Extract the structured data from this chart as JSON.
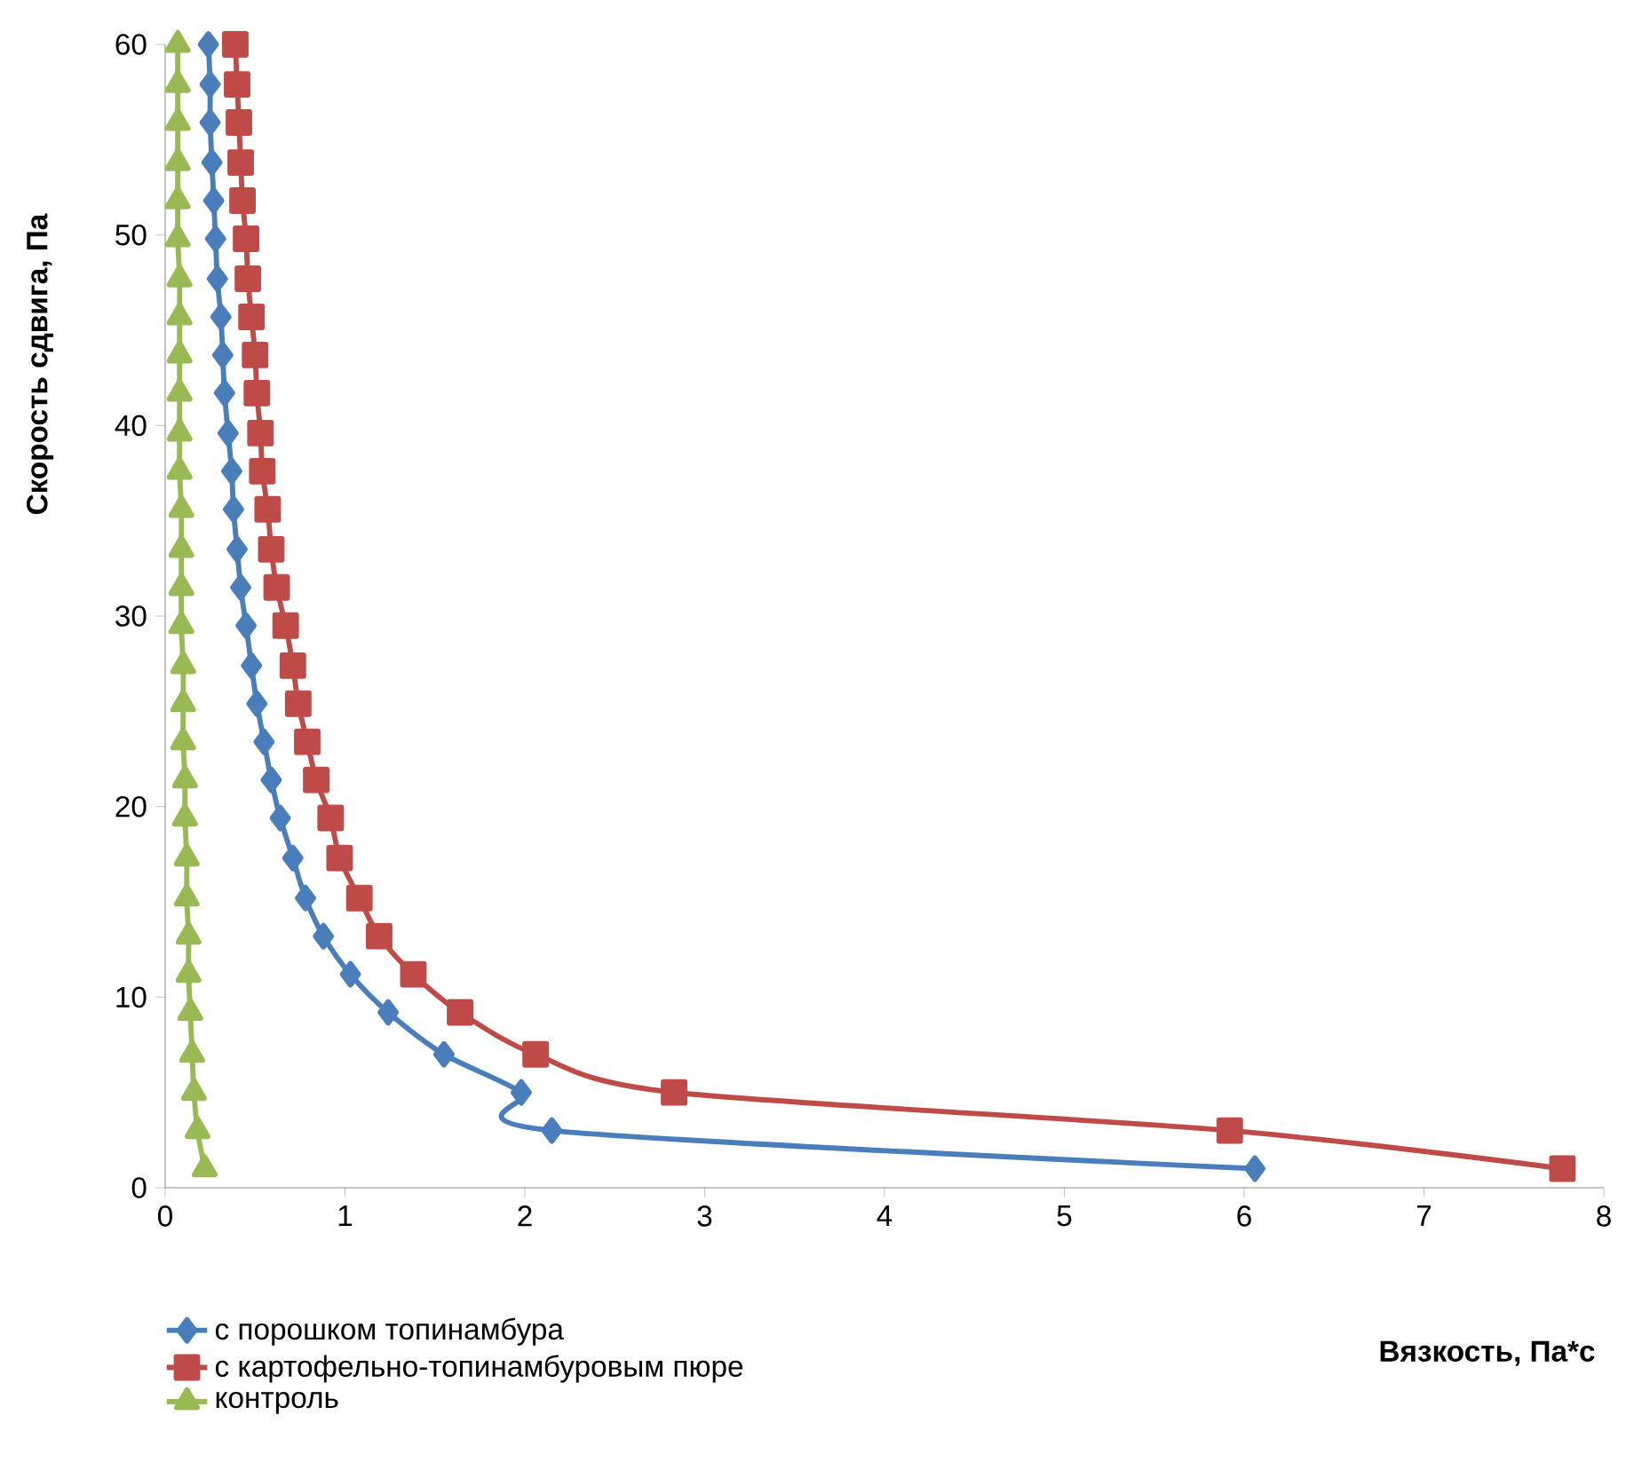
{
  "chart_data": {
    "type": "line",
    "xlabel": "Вязкость, Па*с",
    "ylabel": "Скорость сдвига, Па",
    "xlim": [
      0,
      8
    ],
    "xticks": [
      0,
      1,
      2,
      3,
      4,
      5,
      6,
      7,
      8
    ],
    "ylim": [
      0,
      60
    ],
    "yticks": [
      0,
      10,
      20,
      30,
      40,
      50,
      60
    ],
    "grid": false,
    "legend": "bottom",
    "line_style": "solid",
    "series": [
      {
        "name": "с порошком топинамбура",
        "color": "#4a7ebb",
        "marker": "diamond",
        "x": [
          6.06,
          2.15,
          1.98,
          1.55,
          1.24,
          1.03,
          0.88,
          0.78,
          0.71,
          0.64,
          0.59,
          0.55,
          0.51,
          0.48,
          0.45,
          0.42,
          0.4,
          0.38,
          0.37,
          0.35,
          0.33,
          0.32,
          0.31,
          0.29,
          0.28,
          0.27,
          0.26,
          0.25,
          0.25,
          0.24
        ],
        "values": [
          1,
          3,
          5,
          7,
          9.2,
          11.2,
          13.2,
          15.2,
          17.3,
          19.4,
          21.4,
          23.4,
          25.4,
          27.4,
          29.5,
          31.5,
          33.5,
          35.6,
          37.6,
          39.6,
          41.7,
          43.7,
          45.7,
          47.7,
          49.8,
          51.8,
          53.8,
          55.9,
          57.9,
          60
        ]
      },
      {
        "name": "с картофельно-топинамбуровым пюре",
        "color": "#be4b48",
        "marker": "square",
        "x": [
          7.77,
          5.92,
          2.83,
          2.06,
          1.64,
          1.38,
          1.19,
          1.08,
          0.97,
          0.92,
          0.84,
          0.79,
          0.74,
          0.71,
          0.67,
          0.62,
          0.59,
          0.57,
          0.54,
          0.53,
          0.51,
          0.5,
          0.48,
          0.46,
          0.45,
          0.43,
          0.42,
          0.41,
          0.4,
          0.39
        ],
        "values": [
          1,
          3,
          5,
          7,
          9.2,
          11.2,
          13.2,
          15.2,
          17.3,
          19.4,
          21.4,
          23.4,
          25.4,
          27.4,
          29.5,
          31.5,
          33.5,
          35.6,
          37.6,
          39.6,
          41.7,
          43.7,
          45.7,
          47.7,
          49.8,
          51.8,
          53.8,
          55.9,
          57.9,
          60
        ]
      },
      {
        "name": "контроль",
        "color": "#98b954",
        "marker": "triangle",
        "x": [
          0.22,
          0.18,
          0.16,
          0.15,
          0.14,
          0.13,
          0.13,
          0.12,
          0.12,
          0.11,
          0.11,
          0.1,
          0.1,
          0.1,
          0.09,
          0.09,
          0.09,
          0.09,
          0.08,
          0.08,
          0.08,
          0.08,
          0.08,
          0.08,
          0.07,
          0.07,
          0.07,
          0.07,
          0.07,
          0.07
        ],
        "values": [
          1,
          3,
          5,
          7,
          9.2,
          11.2,
          13.2,
          15.2,
          17.3,
          19.4,
          21.4,
          23.4,
          25.4,
          27.4,
          29.5,
          31.5,
          33.5,
          35.6,
          37.6,
          39.6,
          41.7,
          43.7,
          45.7,
          47.7,
          49.8,
          51.8,
          53.8,
          55.9,
          57.9,
          60
        ]
      }
    ]
  }
}
